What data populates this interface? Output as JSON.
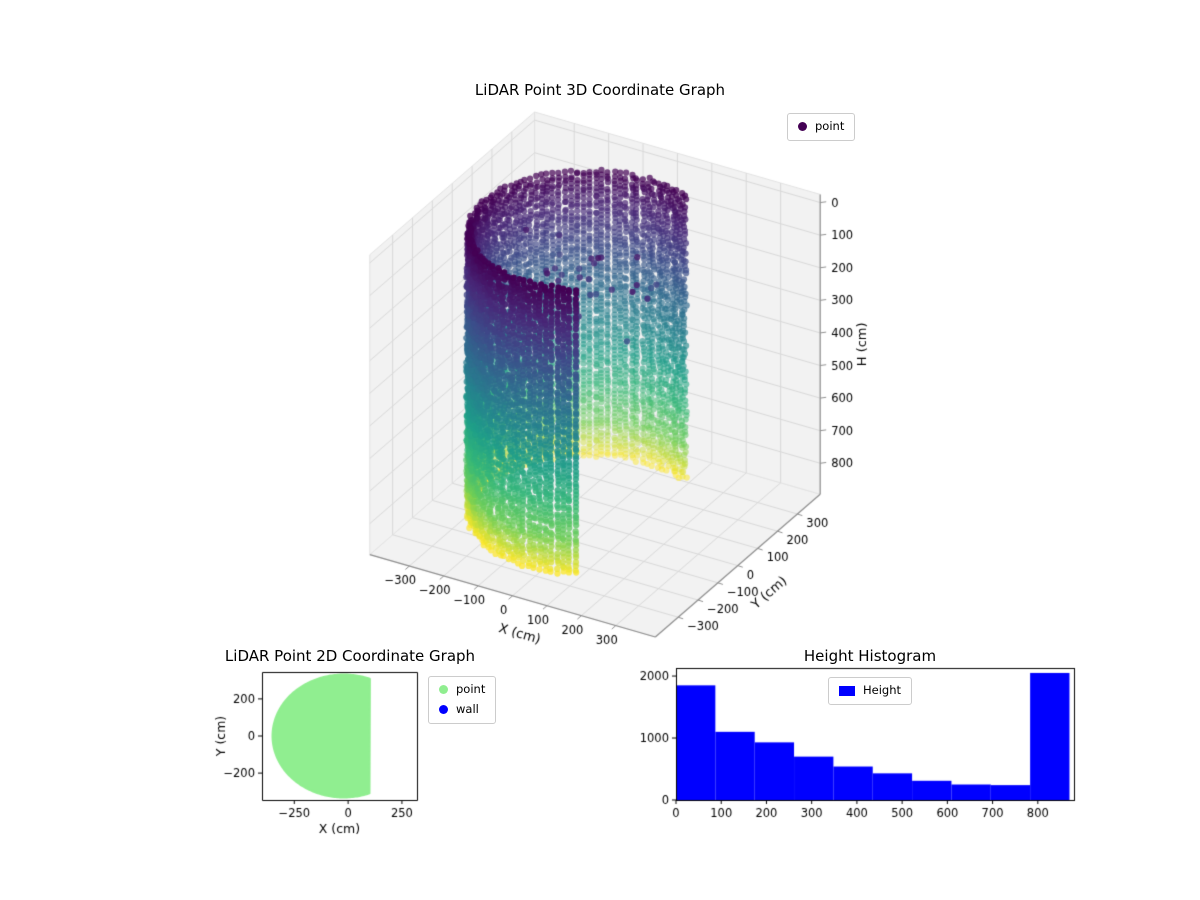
{
  "figure": {
    "background": "#ffffff"
  },
  "chart_data": [
    {
      "id": "lidar-3d",
      "type": "scatter",
      "projection": "3d",
      "title": "LiDAR Point 3D Coordinate Graph",
      "xlabel": "X (cm)",
      "ylabel": "Y (cm)",
      "zlabel": "H (cm)",
      "legend": {
        "position": "upper right",
        "entries": [
          {
            "label": "point",
            "color": "#440154"
          }
        ]
      },
      "axes": {
        "xticks": [
          -300,
          -200,
          -100,
          0,
          100,
          200,
          300
        ],
        "yticks": [
          -300,
          -200,
          -100,
          0,
          100,
          200,
          300
        ],
        "zticks": [
          0,
          100,
          200,
          300,
          400,
          500,
          600,
          700,
          800
        ],
        "xlim": [
          -415,
          415
        ],
        "ylim": [
          -415,
          415
        ],
        "zlim": [
          -25,
          895
        ],
        "z_inverted": true,
        "elev": 30,
        "azim": -60,
        "box_aspect": [
          1,
          1,
          1.05
        ],
        "grid": true,
        "pane_color": "#f2f2f2",
        "pane_edge_color": "#e2e2e2",
        "grid_color": "#d9d9d9",
        "axisline_color": "#8f8f8f"
      },
      "cloud": {
        "shape": "cylinder-wall",
        "description": "vertical wall of LiDAR returns, colored by height (viridis), H axis inverted so H=0 is at top",
        "center_x": -20,
        "center_y": 0,
        "radius": 300,
        "radius_jitter": 7,
        "open_chord_x": 100,
        "angle_start_deg": 66,
        "angle_end_deg": 294,
        "columns": 78,
        "h_min": 0,
        "h_max": 870,
        "points_per_column": 73,
        "colormap": "viridis",
        "color_by": "H",
        "marker_px": 3.1,
        "scatter_noise": {
          "count": 30,
          "h_range": [
            50,
            260
          ],
          "r_max": 210
        },
        "seed": 11
      }
    },
    {
      "id": "lidar-2d",
      "type": "scatter",
      "title": "LiDAR Point 2D Coordinate Graph",
      "xlabel": "X (cm)",
      "ylabel": "Y (cm)",
      "legend": {
        "position": "outside upper right",
        "entries": [
          {
            "label": "point",
            "color": "#90ee90"
          },
          {
            "label": "wall",
            "color": "#0000ff"
          }
        ]
      },
      "axes": {
        "xticks": [
          -250,
          0,
          250
        ],
        "yticks": [
          -200,
          0,
          200
        ],
        "xlim": [
          -400,
          320
        ],
        "ylim": [
          -345,
          345
        ],
        "grid": false
      },
      "region": {
        "shape": "disc-clipped-right",
        "center_x": -20,
        "center_y": 0,
        "radius": 330,
        "chord_x": 100,
        "color": "#90ee90"
      }
    },
    {
      "id": "height-histogram",
      "type": "bar",
      "title": "Height Histogram",
      "legend": {
        "position": "upper center",
        "entries": [
          {
            "label": "Height",
            "color": "#0000ff"
          }
        ]
      },
      "axes": {
        "xticks": [
          0,
          100,
          200,
          300,
          400,
          500,
          600,
          700,
          800
        ],
        "yticks": [
          0,
          1000,
          2000
        ],
        "xlim": [
          0,
          880
        ],
        "ylim": [
          0,
          2130
        ],
        "grid": false
      },
      "bar_color": "#0000ff",
      "xlabel": "",
      "ylabel": "",
      "bin_edges": [
        0,
        87,
        174,
        261,
        348,
        435,
        522,
        609,
        696,
        783,
        870
      ],
      "values": [
        1850,
        1100,
        930,
        700,
        540,
        430,
        310,
        250,
        240,
        2050
      ]
    }
  ]
}
